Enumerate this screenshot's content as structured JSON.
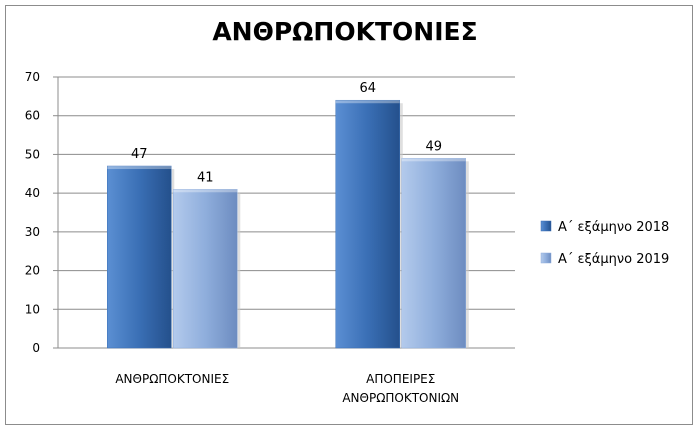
{
  "chart_data": {
    "type": "bar",
    "title": "ΑΝΘΡΩΠΟΚΤΟΝΙΕΣ",
    "categories": [
      [
        "ΑΝΘΡΩΠΟΚΤΟΝΙΕΣ"
      ],
      [
        "ΑΠΟΠΕΙΡΕΣ",
        "ΑΝΘΡΩΠΟΚΤΟΝΙΩΝ"
      ]
    ],
    "series": [
      {
        "name": "Α΄ εξάμηνο 2018",
        "values": [
          47,
          64
        ],
        "color": "#3a6fb5"
      },
      {
        "name": "Α΄ εξάμηνο 2019",
        "values": [
          41,
          49
        ],
        "color": "#8faedc"
      }
    ],
    "ylim": [
      0,
      70
    ],
    "yticks": [
      0,
      10,
      20,
      30,
      40,
      50,
      60,
      70
    ],
    "grid": true,
    "legend": "right",
    "xlabel": "",
    "ylabel": ""
  }
}
